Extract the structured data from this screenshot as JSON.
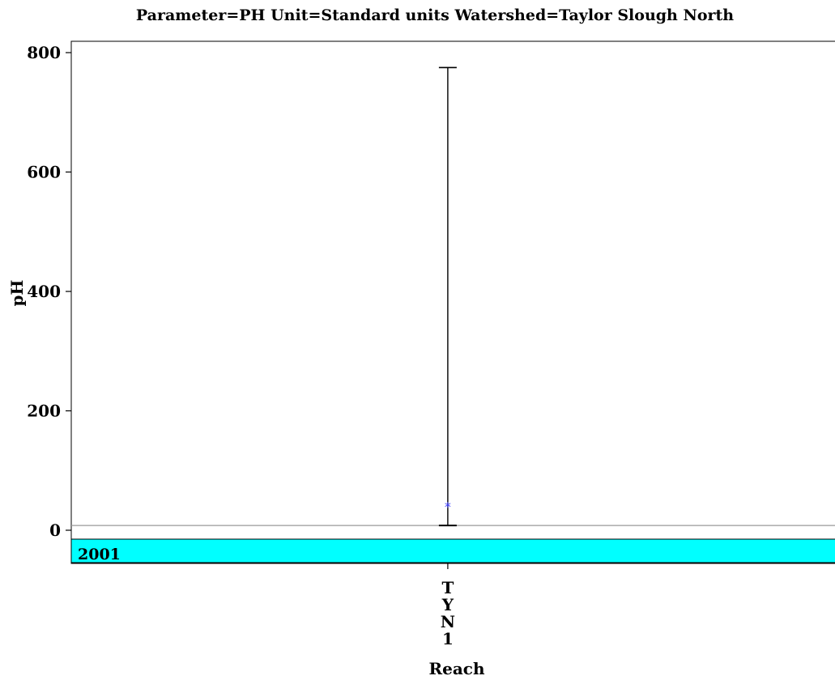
{
  "chart_data": {
    "type": "box",
    "title": "Parameter=PH  Unit=Standard units  Watershed=Taylor Slough North",
    "xlabel": "Reach",
    "ylabel": "pH",
    "categories": [
      "TYN1"
    ],
    "category_label_letters": [
      [
        "T",
        "Y",
        "N",
        "1"
      ]
    ],
    "ylim": [
      -55,
      820
    ],
    "yticks": [
      0,
      200,
      400,
      600,
      800
    ],
    "reference_line": 8,
    "band": {
      "label": "2001",
      "color": "#00ffff"
    },
    "series": [
      {
        "category": "TYN1",
        "whisker_low": 8,
        "whisker_high": 775,
        "mean": 43,
        "mean_color": "#3a3aff"
      }
    ]
  }
}
